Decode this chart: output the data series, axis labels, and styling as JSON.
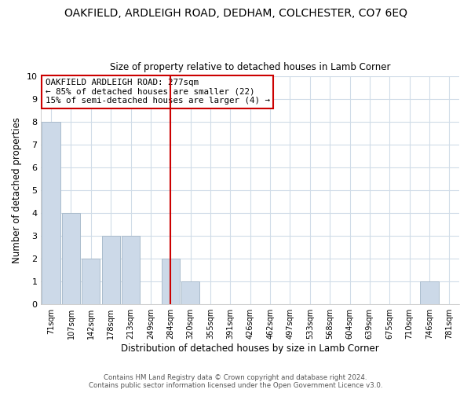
{
  "title": "OAKFIELD, ARDLEIGH ROAD, DEDHAM, COLCHESTER, CO7 6EQ",
  "subtitle": "Size of property relative to detached houses in Lamb Corner",
  "xlabel": "Distribution of detached houses by size in Lamb Corner",
  "ylabel": "Number of detached properties",
  "bar_labels": [
    "71sqm",
    "107sqm",
    "142sqm",
    "178sqm",
    "213sqm",
    "249sqm",
    "284sqm",
    "320sqm",
    "355sqm",
    "391sqm",
    "426sqm",
    "462sqm",
    "497sqm",
    "533sqm",
    "568sqm",
    "604sqm",
    "639sqm",
    "675sqm",
    "710sqm",
    "746sqm",
    "781sqm"
  ],
  "bar_values": [
    8,
    4,
    2,
    3,
    3,
    0,
    2,
    1,
    0,
    0,
    0,
    0,
    0,
    0,
    0,
    0,
    0,
    0,
    0,
    1,
    0
  ],
  "bar_color": "#ccd9e8",
  "bar_edgecolor": "#aabccc",
  "reference_line_x_label": "284sqm",
  "reference_line_color": "#cc0000",
  "ylim": [
    0,
    10
  ],
  "yticks": [
    0,
    1,
    2,
    3,
    4,
    5,
    6,
    7,
    8,
    9,
    10
  ],
  "annotation_title": "OAKFIELD ARDLEIGH ROAD: 277sqm",
  "annotation_line1": "← 85% of detached houses are smaller (22)",
  "annotation_line2": "15% of semi-detached houses are larger (4) →",
  "annotation_box_edgecolor": "#cc0000",
  "footer_line1": "Contains HM Land Registry data © Crown copyright and database right 2024.",
  "footer_line2": "Contains public sector information licensed under the Open Government Licence v3.0.",
  "grid_color": "#d0dce8",
  "plot_bg_color": "#ffffff",
  "fig_bg_color": "#ffffff"
}
